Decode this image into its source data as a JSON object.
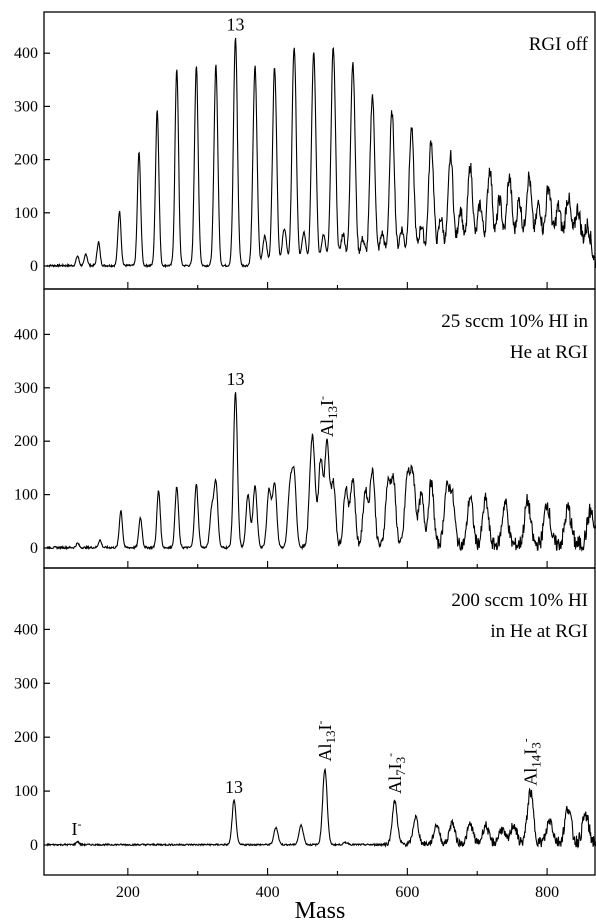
{
  "chart_data": [
    {
      "type": "line",
      "title": "RGI off",
      "xlim": [
        80,
        870
      ],
      "ylim": [
        -20,
        455
      ],
      "yticks": [
        0,
        100,
        200,
        300,
        400
      ],
      "grid": false,
      "annotations": [
        {
          "label": "13",
          "sub": "",
          "x": 354
        }
      ],
      "peaks": [
        [
          128,
          18
        ],
        [
          140,
          22
        ],
        [
          158,
          45
        ],
        [
          188,
          102
        ],
        [
          216,
          214
        ],
        [
          242,
          293
        ],
        [
          270,
          370
        ],
        [
          298,
          376
        ],
        [
          326,
          378
        ],
        [
          354,
          428
        ],
        [
          382,
          375
        ],
        [
          410,
          373
        ],
        [
          438,
          411
        ],
        [
          466,
          403
        ],
        [
          494,
          410
        ],
        [
          522,
          380
        ],
        [
          550,
          319
        ],
        [
          578,
          285
        ],
        [
          606,
          255
        ],
        [
          634,
          232
        ],
        [
          662,
          203
        ],
        [
          690,
          183
        ],
        [
          718,
          178
        ],
        [
          746,
          160
        ],
        [
          774,
          162
        ],
        [
          802,
          143
        ],
        [
          830,
          122
        ],
        [
          858,
          70
        ],
        [
          396,
          56
        ],
        [
          424,
          70
        ],
        [
          452,
          62
        ],
        [
          480,
          58
        ],
        [
          508,
          58
        ],
        [
          536,
          48
        ],
        [
          564,
          58
        ],
        [
          592,
          66
        ],
        [
          620,
          72
        ],
        [
          648,
          86
        ],
        [
          676,
          102
        ],
        [
          704,
          112
        ],
        [
          732,
          120
        ],
        [
          760,
          118
        ],
        [
          788,
          110
        ],
        [
          816,
          104
        ],
        [
          844,
          100
        ]
      ]
    },
    {
      "type": "line",
      "title": "25 sccm 10% HI in\nHe at RGI",
      "xlim": [
        80,
        870
      ],
      "ylim": [
        -20,
        455
      ],
      "yticks": [
        0,
        100,
        200,
        300,
        400
      ],
      "grid": false,
      "annotations": [
        {
          "label": "13",
          "sub": "",
          "x": 354
        },
        {
          "label": "Al13I-",
          "sub": "13",
          "x": 485
        }
      ],
      "peaks": [
        [
          128,
          8
        ],
        [
          160,
          14
        ],
        [
          190,
          70
        ],
        [
          218,
          56
        ],
        [
          244,
          106
        ],
        [
          270,
          113
        ],
        [
          298,
          118
        ],
        [
          320,
          70
        ],
        [
          326,
          122
        ],
        [
          354,
          290
        ],
        [
          372,
          100
        ],
        [
          382,
          115
        ],
        [
          402,
          108
        ],
        [
          410,
          120
        ],
        [
          432,
          108
        ],
        [
          438,
          131
        ],
        [
          462,
          122
        ],
        [
          466,
          132
        ],
        [
          476,
          162
        ],
        [
          485,
          193
        ],
        [
          494,
          120
        ],
        [
          512,
          112
        ],
        [
          522,
          128
        ],
        [
          540,
          104
        ],
        [
          550,
          145
        ],
        [
          572,
          112
        ],
        [
          580,
          120
        ],
        [
          600,
          126
        ],
        [
          608,
          130
        ],
        [
          620,
          95
        ],
        [
          634,
          120
        ],
        [
          656,
          98
        ],
        [
          664,
          92
        ],
        [
          690,
          92
        ],
        [
          712,
          86
        ],
        [
          740,
          80
        ],
        [
          772,
          82
        ],
        [
          800,
          78
        ],
        [
          830,
          68
        ],
        [
          862,
          62
        ]
      ]
    },
    {
      "type": "line",
      "title": "200 sccm 10% HI\nin He at RGI",
      "xlim": [
        80,
        870
      ],
      "ylim": [
        -20,
        455
      ],
      "yticks": [
        0,
        100,
        200,
        300,
        400
      ],
      "grid": false,
      "annotations": [
        {
          "label": "I-",
          "sub": "",
          "x": 128
        },
        {
          "label": "13",
          "sub": "",
          "x": 352
        },
        {
          "label": "Al13I-",
          "sub": "13",
          "x": 482
        },
        {
          "label": "Al7I3-",
          "sub": "7",
          "x": 582
        },
        {
          "label": "Al14I3-",
          "sub": "14",
          "x": 776
        }
      ],
      "peaks": [
        [
          128,
          6
        ],
        [
          352,
          82
        ],
        [
          412,
          32
        ],
        [
          448,
          36
        ],
        [
          482,
          140
        ],
        [
          512,
          4
        ],
        [
          582,
          80
        ],
        [
          612,
          50
        ],
        [
          642,
          36
        ],
        [
          664,
          40
        ],
        [
          690,
          36
        ],
        [
          712,
          34
        ],
        [
          735,
          26
        ],
        [
          752,
          34
        ],
        [
          776,
          95
        ],
        [
          804,
          42
        ],
        [
          830,
          65
        ],
        [
          855,
          50
        ]
      ],
      "xlabel": "Mass",
      "xticks": [
        200,
        400,
        600,
        800
      ]
    }
  ]
}
